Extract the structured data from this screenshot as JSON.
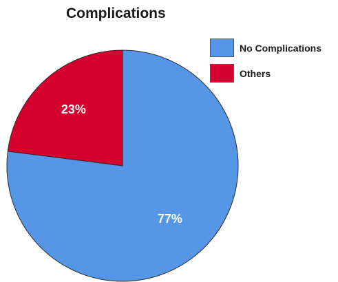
{
  "chart_data": {
    "type": "pie",
    "title": "Complications",
    "slices": [
      {
        "label": "No Complications",
        "value": 77,
        "display": "77%",
        "color": "#5596e6"
      },
      {
        "label": "Others",
        "value": 23,
        "display": "23%",
        "color": "#d6002e"
      }
    ],
    "legend_position": "top-right",
    "slice_border_color": "#2b2b2b"
  }
}
